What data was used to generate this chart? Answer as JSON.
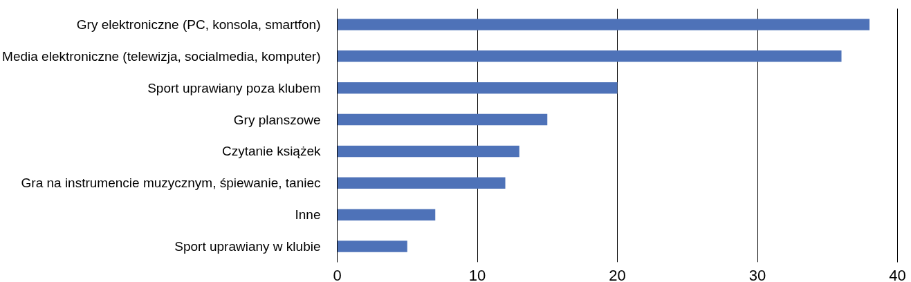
{
  "chart_data": {
    "type": "bar",
    "orientation": "horizontal",
    "categories": [
      "Gry elektroniczne (PC, konsola, smartfon)",
      "Media elektroniczne (telewizja, socialmedia, komputer)",
      "Sport uprawiany poza klubem",
      "Gry planszowe",
      "Czytanie książek",
      "Gra na instrumencie muzycznym, śpiewanie, taniec",
      "Inne",
      "Sport uprawiany w klubie"
    ],
    "values": [
      38,
      36,
      20,
      15,
      13,
      12,
      7,
      5
    ],
    "color": "#4e72b8",
    "xlim": [
      0,
      40
    ],
    "xticks": [
      0,
      10,
      20,
      30,
      40
    ],
    "grid": "x"
  }
}
